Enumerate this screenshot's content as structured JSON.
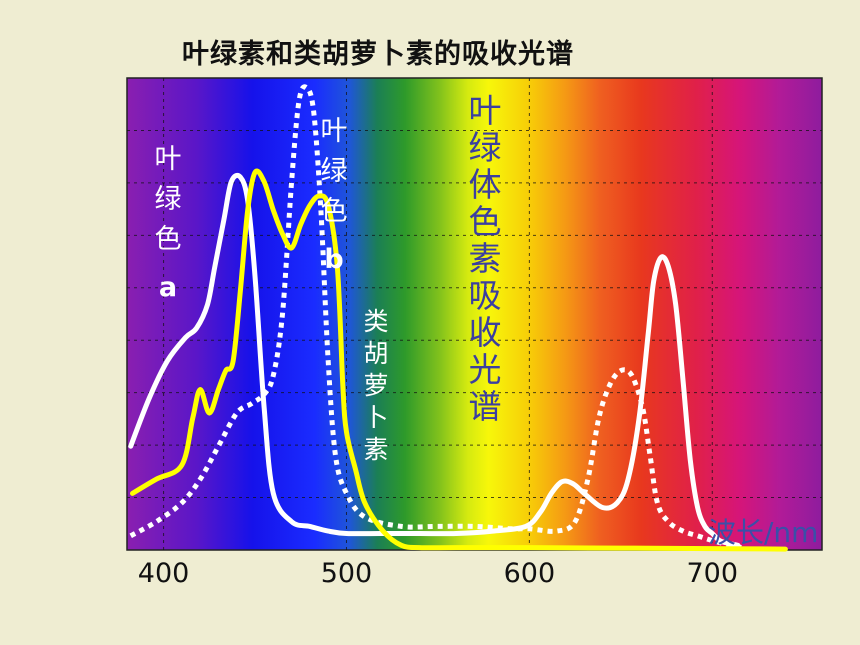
{
  "chart_data": {
    "type": "line",
    "title": "叶绿素和类胡萝卜素的吸收光谱",
    "xlabel": "波长/nm",
    "ylabel": "",
    "xlim": [
      380,
      760
    ],
    "ylim": [
      0,
      1
    ],
    "x_ticks": [
      400,
      500,
      600,
      700
    ],
    "grid": true,
    "background": "visible-spectrum-gradient",
    "series": [
      {
        "name": "叶绿色a",
        "color": "#ffffff",
        "style": "solid",
        "x": [
          382,
          392,
          402,
          412,
          418,
          424,
          428,
          433,
          437,
          442,
          446,
          450,
          455,
          460,
          470,
          480,
          490,
          500,
          520,
          540,
          560,
          580,
          598,
          606,
          612,
          618,
          624,
          630,
          640,
          648,
          654,
          660,
          665,
          668,
          672,
          676,
          680,
          684,
          688,
          692,
          696,
          700,
          704,
          708,
          714
        ],
        "y": [
          0.22,
          0.32,
          0.4,
          0.45,
          0.47,
          0.52,
          0.6,
          0.7,
          0.78,
          0.79,
          0.74,
          0.58,
          0.3,
          0.12,
          0.06,
          0.05,
          0.04,
          0.035,
          0.035,
          0.035,
          0.035,
          0.04,
          0.05,
          0.08,
          0.12,
          0.145,
          0.14,
          0.12,
          0.09,
          0.1,
          0.15,
          0.28,
          0.46,
          0.57,
          0.62,
          0.6,
          0.52,
          0.36,
          0.19,
          0.09,
          0.05,
          0.035,
          0.02,
          0.015,
          0.01
        ]
      },
      {
        "name": "叶绿色b",
        "color": "#ffffff",
        "style": "dotted",
        "x": [
          382,
          396,
          410,
          420,
          430,
          440,
          448,
          455,
          460,
          465,
          470,
          474,
          478,
          482,
          486,
          490,
          494,
          500,
          510,
          530,
          550,
          570,
          590,
          600,
          615,
          625,
          632,
          638,
          644,
          650,
          656,
          662,
          666,
          670,
          676,
          684,
          692,
          700,
          710,
          716
        ],
        "y": [
          0.03,
          0.06,
          0.1,
          0.15,
          0.22,
          0.29,
          0.31,
          0.33,
          0.37,
          0.5,
          0.78,
          0.95,
          0.98,
          0.93,
          0.72,
          0.4,
          0.2,
          0.12,
          0.07,
          0.05,
          0.05,
          0.05,
          0.045,
          0.045,
          0.04,
          0.06,
          0.15,
          0.28,
          0.35,
          0.38,
          0.37,
          0.3,
          0.2,
          0.1,
          0.06,
          0.04,
          0.03,
          0.02,
          0.01,
          0.005
        ]
      },
      {
        "name": "类胡萝卜素",
        "color": "#ffff00",
        "style": "solid",
        "x": [
          383,
          396,
          410,
          416,
          420,
          425,
          430,
          434,
          438,
          442,
          446,
          450,
          455,
          460,
          465,
          470,
          475,
          480,
          485,
          490,
          495,
          498,
          500,
          505,
          510,
          520,
          530,
          540,
          560,
          600,
          650,
          700,
          740
        ],
        "y": [
          0.12,
          0.15,
          0.18,
          0.28,
          0.34,
          0.29,
          0.34,
          0.38,
          0.4,
          0.55,
          0.72,
          0.8,
          0.78,
          0.72,
          0.67,
          0.64,
          0.69,
          0.73,
          0.75,
          0.73,
          0.6,
          0.35,
          0.25,
          0.17,
          0.1,
          0.04,
          0.01,
          0.005,
          0.005,
          0.005,
          0.004,
          0.003,
          0.002
        ]
      }
    ],
    "annotations": [
      {
        "text": "叶绿色",
        "sub": "a"
      },
      {
        "text": "叶绿色",
        "sub": "b"
      },
      {
        "text": "类胡萝卜素"
      },
      {
        "text": "叶绿体色素吸收光谱"
      }
    ]
  }
}
